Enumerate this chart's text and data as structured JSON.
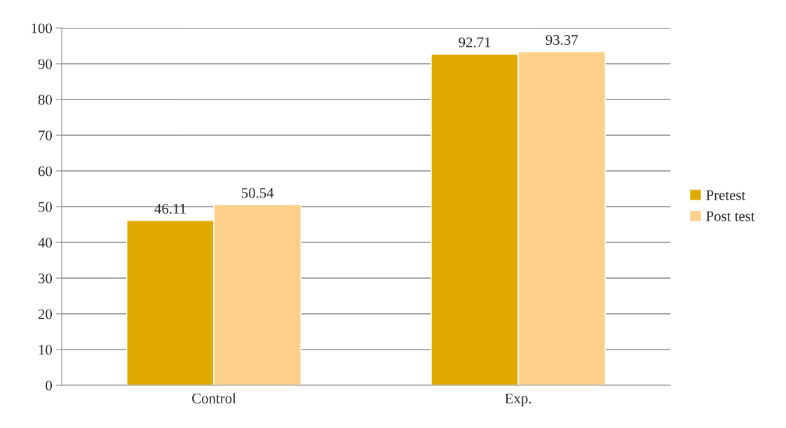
{
  "chart_data": {
    "type": "bar",
    "categories": [
      "Control",
      "Exp."
    ],
    "series": [
      {
        "name": "Pretest",
        "color": "#e0aa00",
        "values": [
          46.11,
          92.71
        ]
      },
      {
        "name": "Post test",
        "color": "#fdd08a",
        "values": [
          50.54,
          93.37
        ]
      }
    ],
    "ylim": [
      0,
      100
    ],
    "yticks": [
      0,
      10,
      20,
      30,
      40,
      50,
      60,
      70,
      80,
      90,
      100
    ],
    "grid": "y",
    "legend": "right",
    "data_labels": true
  }
}
